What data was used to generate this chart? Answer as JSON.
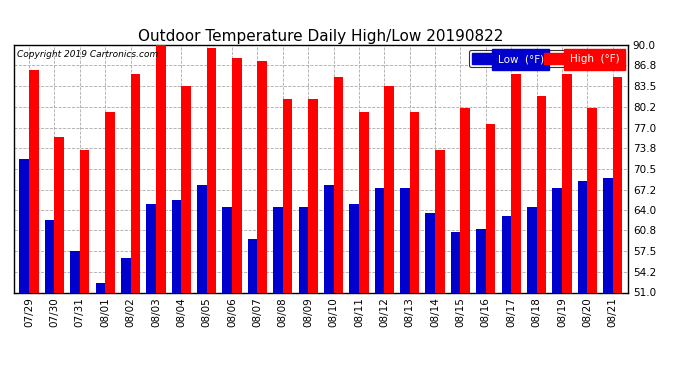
{
  "title": "Outdoor Temperature Daily High/Low 20190822",
  "copyright": "Copyright 2019 Cartronics.com",
  "dates": [
    "07/29",
    "07/30",
    "07/31",
    "08/01",
    "08/02",
    "08/03",
    "08/04",
    "08/05",
    "08/06",
    "08/07",
    "08/08",
    "08/09",
    "08/10",
    "08/11",
    "08/12",
    "08/13",
    "08/14",
    "08/15",
    "08/16",
    "08/17",
    "08/18",
    "08/19",
    "08/20",
    "08/21"
  ],
  "highs": [
    86.0,
    75.5,
    73.5,
    79.5,
    85.5,
    91.0,
    83.5,
    89.5,
    88.0,
    87.5,
    81.5,
    81.5,
    85.0,
    79.5,
    83.5,
    79.5,
    73.5,
    80.0,
    77.5,
    85.5,
    82.0,
    85.5,
    80.0,
    85.0
  ],
  "lows": [
    72.0,
    62.5,
    57.5,
    52.5,
    56.5,
    65.0,
    65.5,
    68.0,
    64.5,
    59.5,
    64.5,
    64.5,
    68.0,
    65.0,
    67.5,
    67.5,
    63.5,
    60.5,
    61.0,
    63.0,
    64.5,
    67.5,
    68.5,
    69.0
  ],
  "ylim": [
    51.0,
    90.0
  ],
  "yticks": [
    51.0,
    54.2,
    57.5,
    60.8,
    64.0,
    67.2,
    70.5,
    73.8,
    77.0,
    80.2,
    83.5,
    86.8,
    90.0
  ],
  "bar_width": 0.38,
  "high_color": "#ff0000",
  "low_color": "#0000cc",
  "bg_color": "#ffffff",
  "grid_color": "#aaaaaa",
  "title_fontsize": 11,
  "tick_fontsize": 7.5,
  "legend_low_label": "Low  (°F)",
  "legend_high_label": "High  (°F)"
}
